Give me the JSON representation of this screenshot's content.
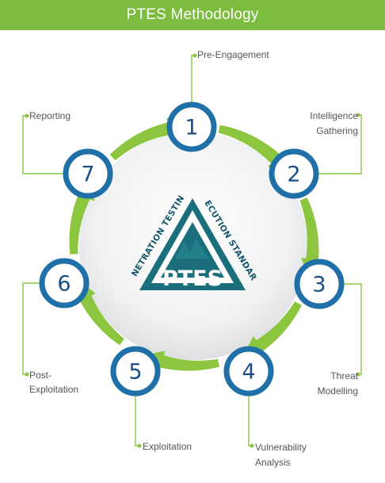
{
  "title": "PTES Methodology",
  "logo": {
    "left_text": "PENETRATION TESTING",
    "right_text": "EXECUTION STANDARD",
    "main_text": "PTES"
  },
  "colors": {
    "header": "#7cbd3f",
    "arrow": "#8cc63f",
    "ring": "#1f6fa8",
    "number": "#1a4f8a",
    "logo": "#1b6f7c",
    "label": "#555555"
  },
  "steps": [
    {
      "number": "1",
      "label_lines": [
        "Pre-Engagement"
      ]
    },
    {
      "number": "2",
      "label_lines": [
        "Intelligence",
        "Gathering"
      ]
    },
    {
      "number": "3",
      "label_lines": [
        "Threat",
        "Modelling"
      ]
    },
    {
      "number": "4",
      "label_lines": [
        "Vulnerability",
        "Analysis"
      ]
    },
    {
      "number": "5",
      "label_lines": [
        "Exploitation"
      ]
    },
    {
      "number": "6",
      "label_lines": [
        "Post-",
        "Exploitation"
      ]
    },
    {
      "number": "7",
      "label_lines": [
        "Reporting"
      ]
    }
  ]
}
